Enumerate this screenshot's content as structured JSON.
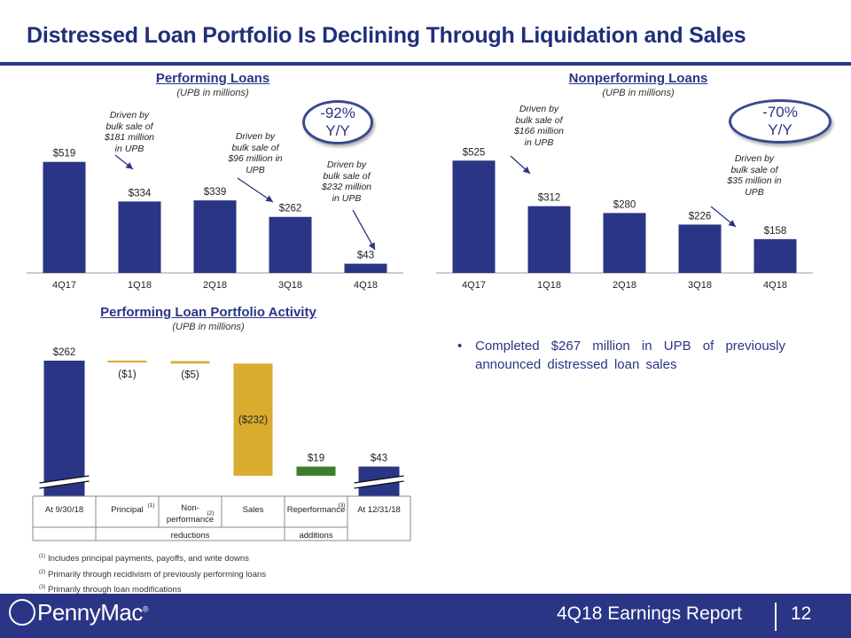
{
  "title": "Distressed Loan Portfolio Is Declining Through Liquidation and Sales",
  "bullet": "Completed $267 million in UPB of previously announced distressed loan sales",
  "footnotes": [
    {
      "mark": "(1)",
      "text": "Includes principal payments, payoffs, and write downs"
    },
    {
      "mark": "(2)",
      "text": "Primarily through recidivism of previously performing loans"
    },
    {
      "mark": "(3)",
      "text": "Primarily through loan modifications"
    }
  ],
  "footer": {
    "logo": "PennyMac",
    "logo_mark": "®",
    "report": "4Q18 Earnings Report",
    "page": "12"
  },
  "colors": {
    "navy": "#2a3585",
    "gold": "#d9ab2f",
    "green": "#3e7d2a"
  },
  "chart_data": [
    {
      "type": "bar",
      "title": "Performing Loans",
      "subtitle": "(UPB in millions)",
      "categories": [
        "4Q17",
        "1Q18",
        "2Q18",
        "3Q18",
        "4Q18"
      ],
      "values": [
        519,
        334,
        339,
        262,
        43
      ],
      "labels": [
        "$519",
        "$334",
        "$339",
        "$262",
        "$43"
      ],
      "ylim": [
        0,
        560
      ],
      "badge": [
        "-92%",
        "Y/Y"
      ],
      "annotations": [
        {
          "lines": [
            "Driven by",
            "bulk sale of",
            "$181 million",
            "in UPB"
          ]
        },
        {
          "lines": [
            "Driven by",
            "bulk sale of",
            "$96 million in",
            "UPB"
          ]
        },
        {
          "lines": [
            "Driven by",
            "bulk sale of",
            "$232 million",
            "in UPB"
          ]
        }
      ]
    },
    {
      "type": "bar",
      "title": "Nonperforming Loans",
      "subtitle": "(UPB in millions)",
      "categories": [
        "4Q17",
        "1Q18",
        "2Q18",
        "3Q18",
        "4Q18"
      ],
      "values": [
        525,
        312,
        280,
        226,
        158
      ],
      "labels": [
        "$525",
        "$312",
        "$280",
        "$226",
        "$158"
      ],
      "ylim": [
        0,
        560
      ],
      "badge": [
        "-70%",
        "Y/Y"
      ],
      "annotations": [
        {
          "lines": [
            "Driven by",
            "bulk sale of",
            "$166 million",
            "in UPB"
          ]
        },
        {
          "lines": [
            "Driven by",
            "bulk sale of",
            "$35 million in",
            "UPB"
          ]
        }
      ]
    },
    {
      "type": "waterfall",
      "title": "Performing Loan Portfolio Activity",
      "subtitle": "(UPB in millions)",
      "categories": [
        "At 9/30/18",
        "Principal",
        "Non-performance",
        "Sales",
        "Reperformance",
        "At 12/31/18"
      ],
      "category_marks": [
        "",
        "(1)",
        "(2)",
        "",
        "(3)",
        ""
      ],
      "values": [
        262,
        -1,
        -5,
        -232,
        19,
        43
      ],
      "labels": [
        "$262",
        "($1)",
        "($5)",
        "($232)",
        "$19",
        "$43"
      ],
      "kinds": [
        "total",
        "decrease",
        "decrease",
        "decrease",
        "increase",
        "total"
      ],
      "groups": [
        {
          "label": "reductions",
          "span": [
            1,
            3
          ]
        },
        {
          "label": "additions",
          "span": [
            4,
            4
          ]
        }
      ]
    }
  ]
}
